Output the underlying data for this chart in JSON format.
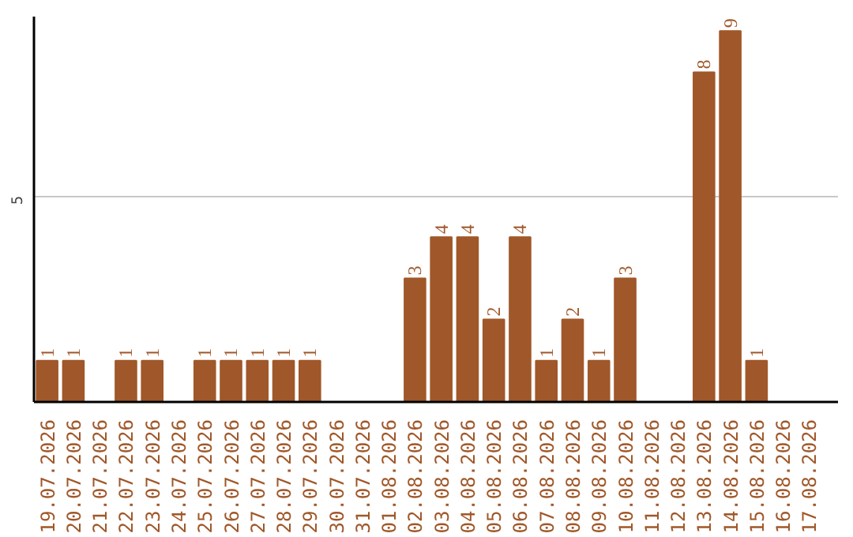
{
  "chart_data": {
    "type": "bar",
    "categories": [
      "19.07.2026",
      "20.07.2026",
      "21.07.2026",
      "22.07.2026",
      "23.07.2026",
      "24.07.2026",
      "25.07.2026",
      "26.07.2026",
      "27.07.2026",
      "28.07.2026",
      "29.07.2026",
      "30.07.2026",
      "31.07.2026",
      "01.08.2026",
      "02.08.2026",
      "03.08.2026",
      "04.08.2026",
      "05.08.2026",
      "06.08.2026",
      "07.08.2026",
      "08.08.2026",
      "09.08.2026",
      "10.08.2026",
      "11.08.2026",
      "12.08.2026",
      "13.08.2026",
      "14.08.2026",
      "15.08.2026",
      "16.08.2026",
      "17.08.2026"
    ],
    "values": [
      1,
      1,
      0,
      1,
      1,
      0,
      1,
      1,
      1,
      1,
      1,
      0,
      0,
      0,
      3,
      4,
      4,
      2,
      4,
      1,
      2,
      1,
      3,
      0,
      0,
      8,
      9,
      1,
      0,
      0
    ],
    "value_labels": [
      "1",
      "1",
      null,
      "1",
      "1",
      null,
      "1",
      "1",
      "1",
      "1",
      "1",
      null,
      null,
      null,
      "3",
      "4",
      "4",
      "2",
      "4",
      "1",
      "2",
      "1",
      "3",
      null,
      null,
      "8",
      "9",
      "1",
      null,
      null
    ],
    "color": "#a0582a",
    "ylim": [
      0,
      9.35
    ],
    "yticks": [
      5
    ],
    "grid": "y"
  }
}
